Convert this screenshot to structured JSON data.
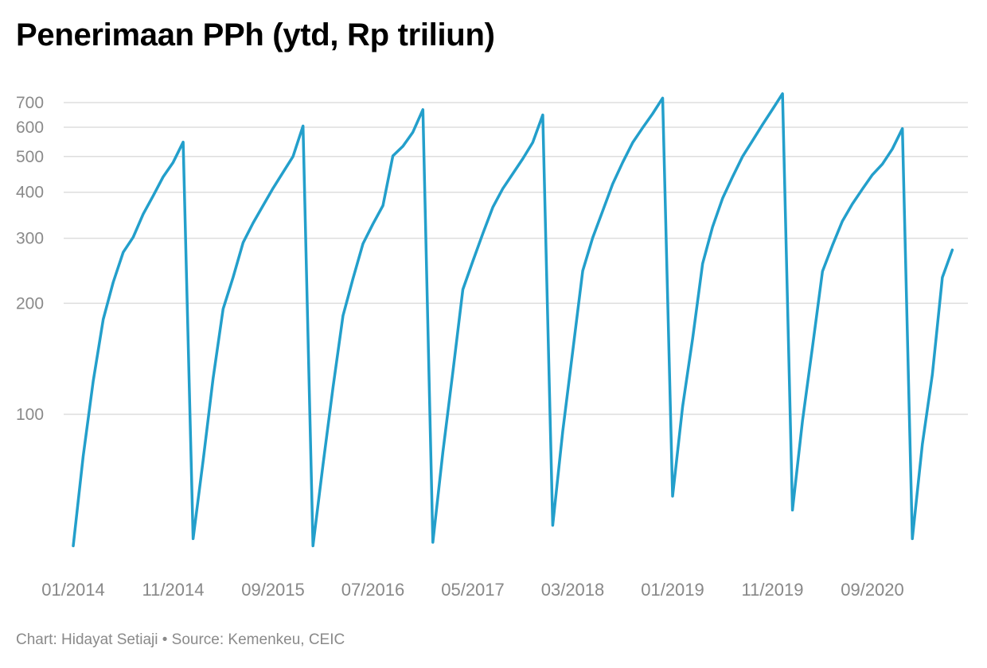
{
  "title": "Penerimaan PPh (ytd, Rp triliun)",
  "footer": "Chart: Hidayat Setiaji • Source: Kemenkeu, CEIC",
  "colors": {
    "line": "#239fcb",
    "grid": "#dddddd",
    "tick_text": "#8a8a8a"
  },
  "chart_data": {
    "type": "line",
    "title": "Penerimaan PPh (ytd, Rp triliun)",
    "xlabel": "",
    "ylabel": "",
    "yscale": "log",
    "ylim": [
      43,
      760
    ],
    "grid": true,
    "legend": "none",
    "yticks": [
      100,
      200,
      300,
      400,
      500,
      600,
      700
    ],
    "xtick_labels": [
      "01/2014",
      "11/2014",
      "09/2015",
      "07/2016",
      "05/2017",
      "03/2018",
      "01/2019",
      "11/2019",
      "09/2020"
    ],
    "series": [
      {
        "name": "",
        "x": [
          "01/2014",
          "02/2014",
          "03/2014",
          "04/2014",
          "05/2014",
          "06/2014",
          "07/2014",
          "08/2014",
          "09/2014",
          "10/2014",
          "11/2014",
          "12/2014",
          "01/2015",
          "02/2015",
          "03/2015",
          "04/2015",
          "05/2015",
          "06/2015",
          "07/2015",
          "08/2015",
          "09/2015",
          "10/2015",
          "11/2015",
          "12/2015",
          "01/2016",
          "02/2016",
          "03/2016",
          "04/2016",
          "05/2016",
          "06/2016",
          "07/2016",
          "08/2016",
          "09/2016",
          "10/2016",
          "11/2016",
          "12/2016",
          "01/2017",
          "02/2017",
          "03/2017",
          "04/2017",
          "05/2017",
          "06/2017",
          "07/2017",
          "08/2017",
          "09/2017",
          "10/2017",
          "11/2017",
          "12/2017",
          "01/2018",
          "02/2018",
          "03/2018",
          "04/2018",
          "05/2018",
          "06/2018",
          "07/2018",
          "08/2018",
          "09/2018",
          "10/2018",
          "11/2018",
          "12/2018",
          "01/2019",
          "02/2019",
          "03/2019",
          "04/2019",
          "05/2019",
          "06/2019",
          "07/2019",
          "08/2019",
          "09/2019",
          "10/2019",
          "11/2019",
          "12/2019",
          "01/2020",
          "02/2020",
          "03/2020",
          "04/2020",
          "05/2020",
          "06/2020",
          "07/2020",
          "08/2020",
          "09/2020",
          "10/2020",
          "11/2020",
          "12/2020",
          "01/2021",
          "02/2021",
          "03/2021",
          "04/2021",
          "05/2021"
        ],
        "values": [
          44,
          77,
          123,
          181,
          228,
          275,
          302,
          349,
          391,
          440,
          482,
          547,
          46,
          75,
          125,
          193,
          235,
          292,
          330,
          368,
          410,
          453,
          500,
          605,
          44,
          73,
          118,
          185,
          233,
          290,
          328,
          368,
          502,
          533,
          582,
          670,
          45,
          79,
          130,
          218,
          260,
          309,
          364,
          409,
          449,
          493,
          546,
          648,
          50,
          90,
          148,
          245,
          301,
          356,
          421,
          482,
          545,
          598,
          653,
          720,
          60,
          105,
          160,
          256,
          322,
          385,
          440,
          500,
          552,
          610,
          671,
          740,
          55,
          96,
          152,
          244,
          287,
          334,
          372,
          408,
          446,
          477,
          524,
          595,
          46,
          83,
          128,
          235,
          279
        ]
      }
    ]
  }
}
